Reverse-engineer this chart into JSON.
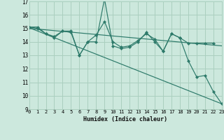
{
  "xlabel": "Humidex (Indice chaleur)",
  "bg_color": "#cce8dd",
  "grid_color": "#aacfbf",
  "line_color": "#2d7a6a",
  "xlim": [
    0,
    23
  ],
  "ylim": [
    9,
    17
  ],
  "xticks": [
    0,
    1,
    2,
    3,
    4,
    5,
    6,
    7,
    8,
    9,
    10,
    11,
    12,
    13,
    14,
    15,
    16,
    17,
    18,
    19,
    20,
    21,
    22,
    23
  ],
  "yticks": [
    9,
    10,
    11,
    12,
    13,
    14,
    15,
    16,
    17
  ],
  "series1_x": [
    0,
    1,
    2,
    3,
    4,
    5,
    6,
    7,
    8,
    9,
    10,
    11,
    12,
    13,
    14,
    15,
    16,
    17,
    18,
    19,
    20,
    21,
    22
  ],
  "series1_y": [
    15.1,
    15.1,
    14.6,
    14.4,
    14.8,
    14.8,
    13.0,
    14.0,
    14.5,
    15.5,
    14.0,
    13.6,
    13.7,
    14.1,
    14.6,
    14.2,
    13.3,
    14.6,
    14.3,
    13.9,
    13.9,
    13.9,
    13.9
  ],
  "series2_x": [
    0,
    1,
    2,
    3,
    4,
    5,
    6,
    7,
    8,
    9,
    10,
    11,
    12,
    13,
    14,
    15,
    16,
    17,
    18,
    19,
    20,
    21,
    22,
    23
  ],
  "series2_y": [
    15.1,
    15.0,
    14.6,
    14.3,
    14.8,
    14.7,
    13.0,
    14.0,
    14.0,
    17.2,
    13.7,
    13.5,
    13.6,
    14.0,
    14.7,
    14.0,
    13.3,
    14.6,
    14.3,
    12.6,
    11.4,
    11.5,
    10.3,
    9.4
  ],
  "trend1_x": [
    0,
    23
  ],
  "trend1_y": [
    15.05,
    9.4
  ],
  "trend2_x": [
    0,
    23
  ],
  "trend2_y": [
    15.0,
    13.7
  ],
  "marker_size": 2.2,
  "lw": 0.85
}
